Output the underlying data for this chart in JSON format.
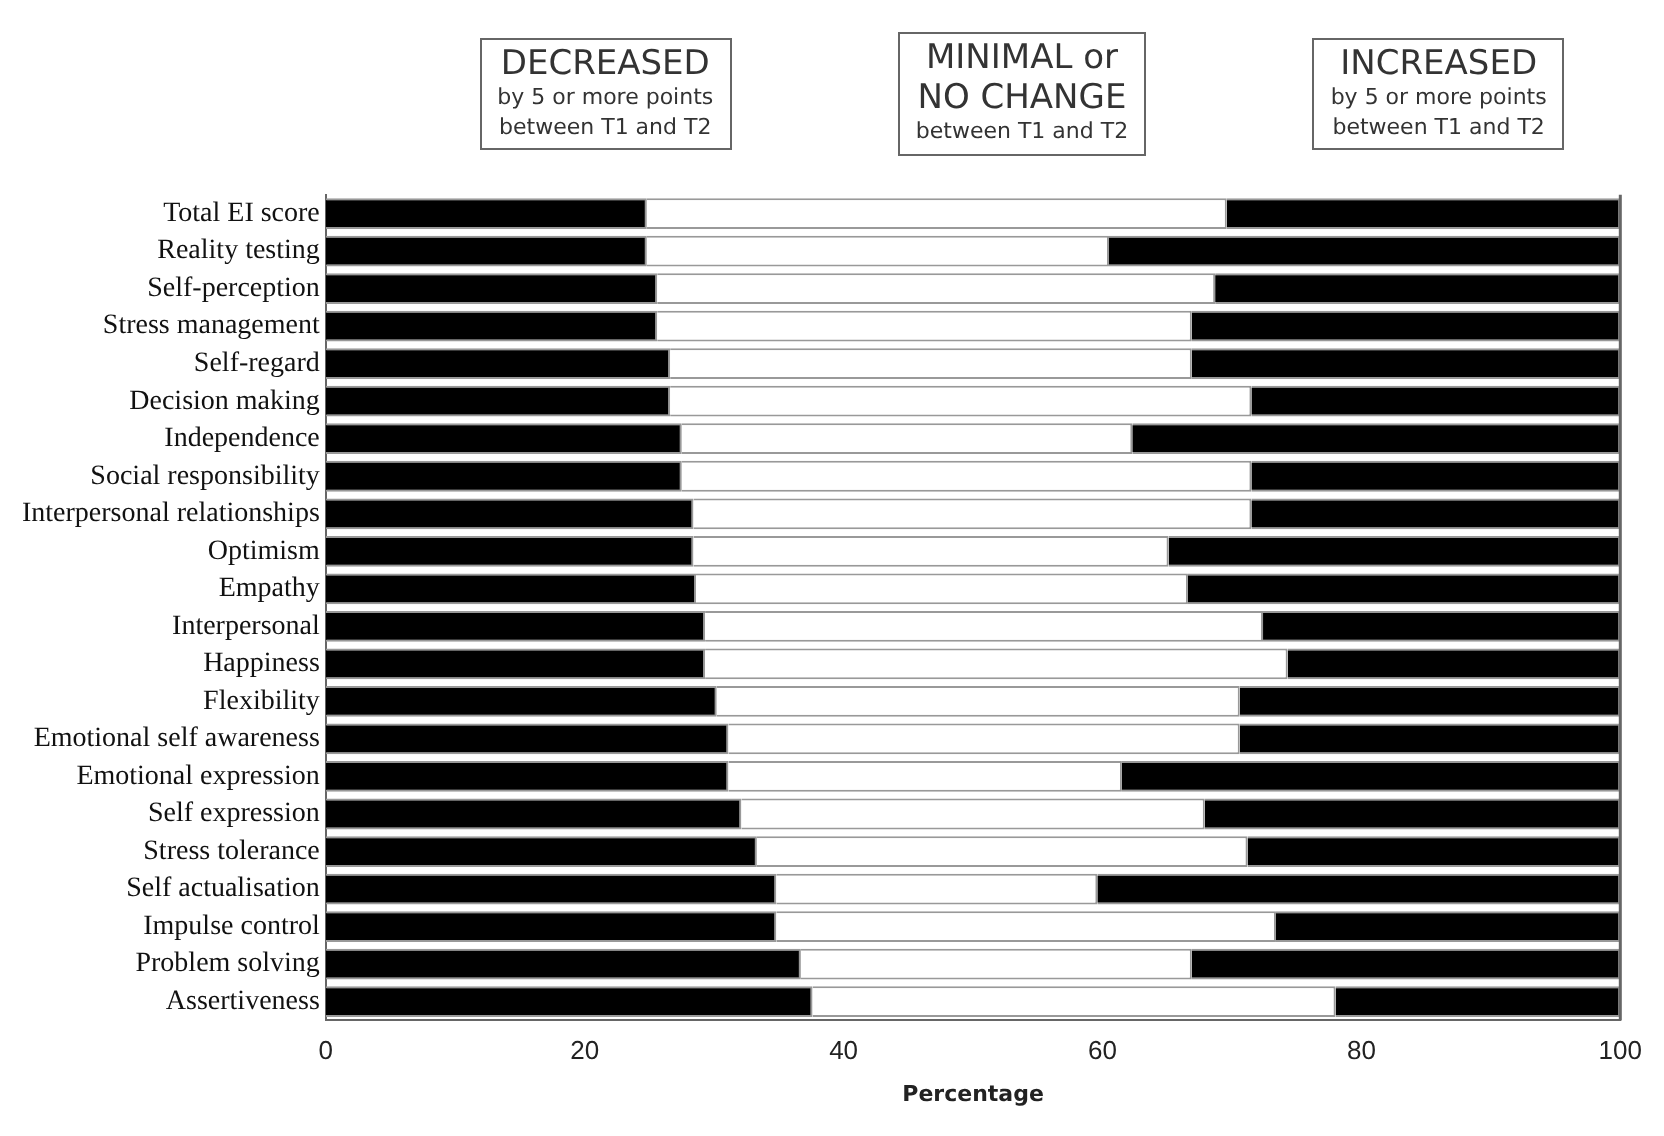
{
  "chart_data": {
    "type": "bar",
    "orientation": "horizontal",
    "stacked": true,
    "xlabel": "Percentage",
    "categories": [
      "Total EI score",
      "Reality testing",
      "Self-perception",
      "Stress management",
      "Self-regard",
      "Decision making",
      "Independence",
      "Social responsibility",
      "Interpersonal relationships",
      "Optimism",
      "Empathy",
      "Interpersonal",
      "Happiness",
      "Flexibility",
      "Emotional self awareness",
      "Emotional expression",
      "Self expression",
      "Stress tolerance",
      "Self actualisation",
      "Impulse control",
      "Problem solving",
      "Assertiveness"
    ],
    "series": [
      {
        "color": "#000000",
        "values": [
          24.8,
          24.8,
          25.6,
          25.6,
          26.6,
          26.6,
          27.5,
          27.5,
          28.4,
          28.4,
          28.6,
          29.3,
          29.3,
          30.2,
          31.1,
          31.1,
          32.1,
          33.3,
          34.8,
          34.8,
          36.7,
          37.6
        ]
      },
      {
        "color": "#ffffff",
        "values": [
          44.8,
          35.7,
          43.1,
          41.3,
          40.3,
          44.9,
          34.8,
          44.0,
          43.1,
          36.7,
          38.0,
          43.1,
          45.0,
          40.4,
          39.5,
          30.4,
          35.8,
          37.9,
          24.8,
          38.6,
          30.2,
          40.4
        ]
      },
      {
        "color": "#000000",
        "values": [
          30.4,
          39.5,
          31.3,
          33.1,
          33.1,
          28.5,
          37.7,
          28.5,
          28.5,
          34.9,
          33.4,
          27.6,
          25.7,
          29.4,
          29.4,
          38.5,
          32.1,
          28.8,
          40.4,
          26.6,
          33.1,
          22.0
        ]
      }
    ],
    "xlim": [
      0,
      100
    ],
    "xticks": [
      0,
      20,
      40,
      60,
      80,
      100
    ],
    "grid": false,
    "legend": false,
    "annotations": [
      "DECREASED",
      "by 5 or more points\nbetween T1 and T2",
      "MINIMAL or\nNO CHANGE",
      "between T1 and T2",
      "INCREASED",
      "by 5 or more points\nbetween T1 and T2"
    ]
  }
}
